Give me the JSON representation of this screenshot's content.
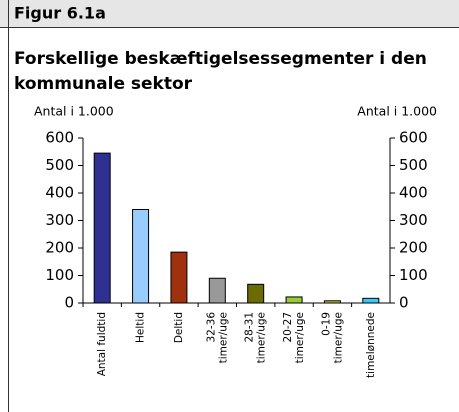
{
  "chart_data": {
    "type": "bar",
    "figure_label": "Figur 6.1a",
    "title": [
      "Forskellige beskæftigelsessegmenter i den",
      "kommunale sektor"
    ],
    "y_label": "Antal i 1.000",
    "y2_label": "Antal i 1.000",
    "categories": [
      "Antal fuldtid",
      "Heltid",
      "Deltid",
      "32-36\ntimer/uge",
      "28-31\ntimer/uge",
      "20-27\ntimer/uge",
      "0-19\ntimer/uge",
      "timelønnede"
    ],
    "values": [
      545,
      340,
      185,
      90,
      68,
      22,
      8,
      17
    ],
    "colors": [
      "#2e3192",
      "#99ccff",
      "#a0310f",
      "#999999",
      "#6b6b00",
      "#99cc33",
      "#cccc33",
      "#33ccff"
    ],
    "ylim": [
      0,
      600
    ],
    "yticks": [
      0,
      100,
      200,
      300,
      400,
      500,
      600
    ],
    "y2lim": [
      0,
      600
    ],
    "y2ticks": [
      0,
      100,
      200,
      300,
      400,
      500,
      600
    ],
    "grid": false
  }
}
